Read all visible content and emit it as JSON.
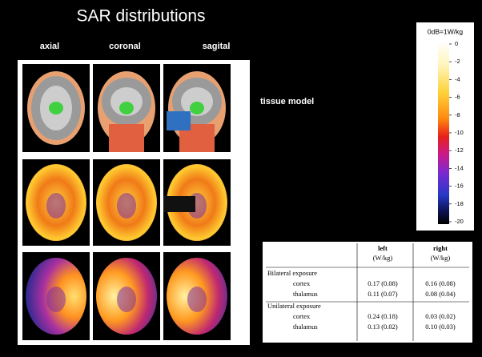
{
  "title": "SAR distributions",
  "columns": [
    "axial",
    "coronal",
    "sagital"
  ],
  "row_label": "tissue model",
  "colorbar": {
    "label": "0dB=1W/kg",
    "ticks": [
      "0",
      "-2",
      "-4",
      "-6",
      "-8",
      "-10",
      "-12",
      "-14",
      "-16",
      "-18",
      "-20"
    ]
  },
  "table": {
    "header": [
      [
        "left",
        "(W/kg)"
      ],
      [
        "right",
        "(W/kg)"
      ]
    ],
    "groups": [
      {
        "label": "Bilateral exposure",
        "rows": [
          [
            "cortex",
            "0.17 (0.08)",
            "0.16 (0.08)"
          ],
          [
            "thalamus",
            "0.11 (0.07)",
            "0.08 (0.04)"
          ]
        ]
      },
      {
        "label": "Unilateral exposure",
        "rows": [
          [
            "cortex",
            "0.24 (0.18)",
            "0.03 (0.02)"
          ],
          [
            "thalamus",
            "0.13 (0.02)",
            "0.10 (0.03)"
          ]
        ]
      }
    ]
  }
}
